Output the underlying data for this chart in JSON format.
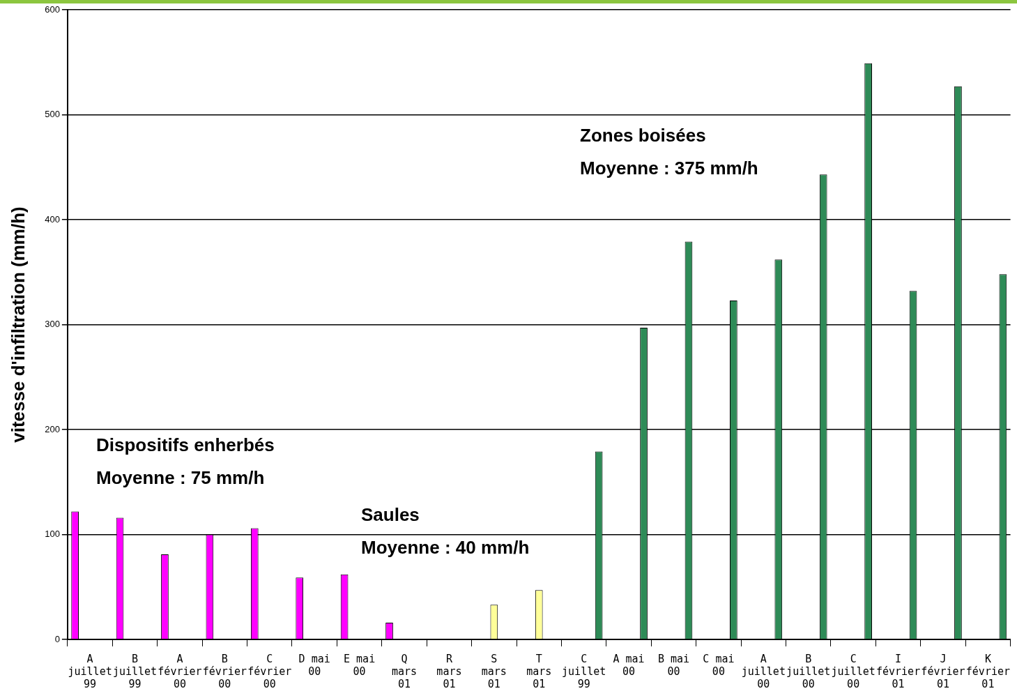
{
  "chart_data": {
    "type": "bar",
    "ylabel": "vitesse d'infiltration (mm/h)",
    "categories": [
      "A\njuillet\n99",
      "B\njuillet\n99",
      "A\nfévrier\n00",
      "B\nfévrier\n00",
      "C\nfévrier\n00",
      "D mai\n00",
      "E mai\n00",
      "Q\nmars\n01",
      "R\nmars\n01",
      "S\nmars\n01",
      "T\nmars\n01",
      "C\njuillet\n99",
      "A mai\n00",
      "B mai\n00",
      "C mai\n00",
      "A\njuillet\n00",
      "B\njuillet\n00",
      "C\njuillet\n00",
      "I\nfévrier\n01",
      "J\nfévrier\n01",
      "K\nfévrier\n01"
    ],
    "series": [
      {
        "color": "#ff00ff",
        "values": [
          122,
          116,
          81,
          100,
          106,
          59,
          62,
          16,
          null,
          null,
          null,
          null,
          null,
          null,
          null,
          null,
          null,
          null,
          null,
          null,
          null
        ]
      },
      {
        "color": "#ffff99",
        "values": [
          null,
          null,
          null,
          null,
          null,
          null,
          null,
          null,
          null,
          33,
          47,
          null,
          null,
          null,
          null,
          null,
          null,
          null,
          null,
          null,
          null
        ]
      },
      {
        "color": "#2e8b57",
        "values": [
          null,
          null,
          null,
          null,
          null,
          null,
          null,
          null,
          null,
          null,
          null,
          179,
          297,
          379,
          323,
          362,
          443,
          549,
          332,
          527,
          348
        ]
      }
    ],
    "ylim": [
      0,
      600
    ],
    "yticks": [
      0,
      100,
      200,
      300,
      400,
      500,
      600
    ],
    "grid": "y",
    "legend": false,
    "annotations": [
      "Dispositifs enherbés",
      "Moyenne : 75 mm/h",
      "Saules",
      "Moyenne : 40 mm/h",
      "Zones boisées",
      "Moyenne : 375 mm/h"
    ]
  }
}
